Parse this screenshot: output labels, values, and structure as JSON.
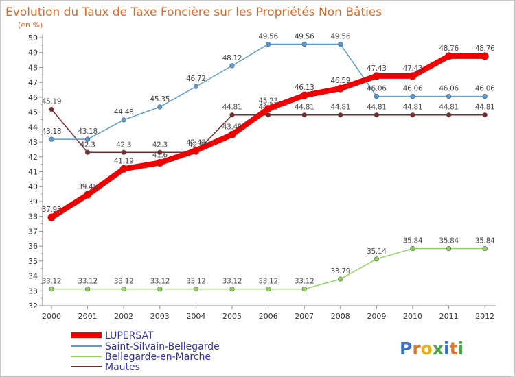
{
  "chart_data": {
    "type": "line",
    "title": "Evolution du Taux de Taxe Foncière sur les Propriétés Non Bâties",
    "subtitle": "(en %)",
    "x": [
      "2000",
      "2001",
      "2002",
      "2003",
      "2004",
      "2005",
      "2006",
      "2007",
      "2008",
      "2009",
      "2010",
      "2011",
      "2012"
    ],
    "ylim": [
      32,
      50
    ],
    "yticks": [
      32,
      33,
      34,
      35,
      36,
      37,
      38,
      39,
      40,
      41,
      42,
      43,
      44,
      45,
      46,
      47,
      48,
      49,
      50
    ],
    "grid": false,
    "legend_position": "bottom-left",
    "series": [
      {
        "name": "LUPERSAT",
        "color": "#ee0000",
        "values": [
          37.93,
          39.45,
          41.19,
          41.6,
          42.43,
          43.49,
          45.23,
          46.13,
          46.59,
          47.43,
          47.43,
          48.76,
          48.76
        ],
        "labels": [
          "37.93",
          "39.45",
          "41.19",
          "41.6",
          "42.43",
          "43.49",
          "45.23",
          "46.13",
          "46.59",
          "47.43",
          "47.43",
          "48.76",
          "48.76"
        ]
      },
      {
        "name": "Saint-Silvain-Bellegarde",
        "color": "#5b9bd5",
        "values": [
          43.18,
          43.18,
          44.48,
          45.35,
          46.72,
          48.12,
          49.56,
          49.56,
          49.56,
          46.06,
          46.06,
          46.06,
          46.06
        ],
        "labels": [
          "43.18",
          "43.18",
          "44.48",
          "45.35",
          "46.72",
          "48.12",
          "49.56",
          "49.56",
          "49.56",
          "46.06",
          "46.06",
          "46.06",
          "46.06"
        ]
      },
      {
        "name": "Bellegarde-en-Marche",
        "color": "#8fd45a",
        "values": [
          33.12,
          33.12,
          33.12,
          33.12,
          33.12,
          33.12,
          33.12,
          33.12,
          33.79,
          35.14,
          35.84,
          35.84,
          35.84
        ],
        "labels": [
          "33.12",
          "33.12",
          "33.12",
          "33.12",
          "33.12",
          "33.12",
          "33.12",
          "33.12",
          "33.79",
          "35.14",
          "35.84",
          "35.84",
          "35.84"
        ]
      },
      {
        "name": "Mautes",
        "color": "#7a2a2a",
        "values": [
          45.19,
          42.3,
          42.3,
          42.3,
          42.3,
          44.81,
          44.81,
          44.81,
          44.81,
          44.81,
          44.81,
          44.81,
          44.81
        ],
        "labels": [
          "45.19",
          "42.3",
          "42.3",
          "42.3",
          "42.3",
          "44.81",
          "44.81",
          "44.81",
          "44.81",
          "44.81",
          "44.81",
          "44.81",
          "44.81"
        ]
      }
    ]
  },
  "logo": {
    "letters": [
      "P",
      "r",
      "o",
      "x",
      "i",
      "t",
      "i"
    ],
    "colors": [
      "#3a6fc4",
      "#e07a2a",
      "#e4b41a",
      "#4aa84a",
      "#3a6fc4",
      "#e07a2a",
      "#4aa84a"
    ]
  }
}
